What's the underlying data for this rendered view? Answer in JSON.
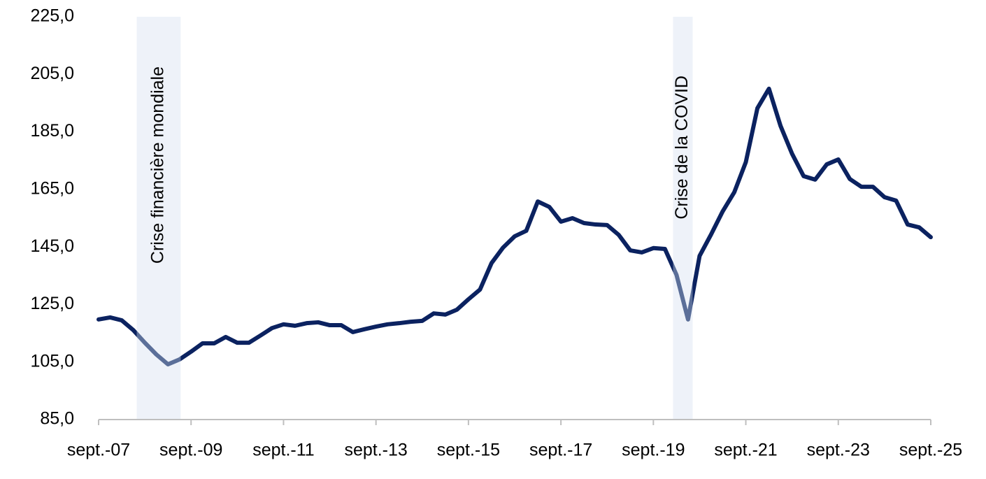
{
  "chart_data": {
    "type": "line",
    "categories": [
      "sept.-07",
      null,
      null,
      null,
      null,
      null,
      null,
      null,
      "sept.-09",
      null,
      null,
      null,
      null,
      null,
      null,
      null,
      "sept.-11",
      null,
      null,
      null,
      null,
      null,
      null,
      null,
      "sept.-13",
      null,
      null,
      null,
      null,
      null,
      null,
      null,
      "sept.-15",
      null,
      null,
      null,
      null,
      null,
      null,
      null,
      "sept.-17",
      null,
      null,
      null,
      null,
      null,
      null,
      null,
      "sept.-19",
      null,
      null,
      null,
      null,
      null,
      null,
      null,
      "sept.-21",
      null,
      null,
      null,
      null,
      null,
      null,
      null,
      "sept.-23",
      null,
      null,
      null,
      null,
      null,
      null,
      null,
      "sept.-25"
    ],
    "series": [
      {
        "color": "#0b2260",
        "values": [
          119.8,
          120.5,
          119.5,
          116.1,
          111.7,
          107.6,
          104.2,
          105.9,
          108.6,
          111.5,
          111.5,
          113.7,
          111.7,
          111.7,
          114.2,
          116.8,
          118.1,
          117.6,
          118.5,
          118.8,
          117.8,
          117.8,
          115.4,
          116.4,
          117.3,
          118.1,
          118.5,
          119.0,
          119.3,
          121.9,
          121.5,
          123.2,
          126.8,
          130.2,
          139.4,
          144.8,
          148.7,
          150.6,
          160.8,
          158.9,
          153.8,
          155.0,
          153.3,
          152.8,
          152.6,
          149.2,
          143.8,
          143.1,
          144.6,
          144.3,
          135.3,
          119.8,
          141.9,
          149.4,
          157.4,
          164.0,
          174.5,
          193.2,
          200.0,
          187.1,
          177.4,
          169.6,
          168.4,
          173.7,
          175.4,
          168.6,
          165.9,
          165.9,
          162.3,
          161.1,
          152.8,
          151.8,
          148.4
        ]
      }
    ],
    "ylim": [
      85,
      225
    ],
    "yticks": [
      {
        "value": 85,
        "label": "85,0"
      },
      {
        "value": 105,
        "label": "105,0"
      },
      {
        "value": 125,
        "label": "125,0"
      },
      {
        "value": 145,
        "label": "145,0"
      },
      {
        "value": 165,
        "label": "165,0"
      },
      {
        "value": 185,
        "label": "185,0"
      },
      {
        "value": 205,
        "label": "205,0"
      },
      {
        "value": 225,
        "label": "225,0"
      }
    ],
    "regions": [
      {
        "label": "Crise financière mondiale",
        "start": 3.3,
        "end": 7.1,
        "color": "#eef2f9",
        "line_color": "#5b6f99"
      },
      {
        "label": "Crise de la COVID",
        "start": 49.7,
        "end": 51.4,
        "color": "#eef2f9",
        "line_color": "#5b6f99"
      }
    ]
  }
}
